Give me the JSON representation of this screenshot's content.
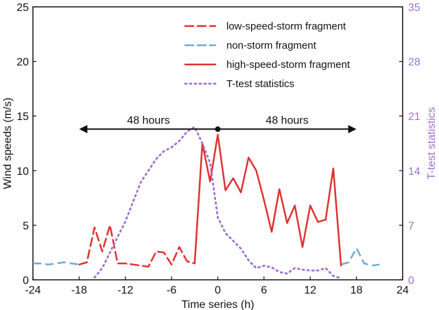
{
  "chart_data": {
    "type": "line",
    "xlabel": "Time series (h)",
    "ylabel": "Wind speeds (m/s)",
    "y2label": "T-test statistics",
    "xlim": [
      -24,
      24
    ],
    "ylim": [
      0,
      25
    ],
    "y2lim": [
      0,
      35
    ],
    "xticks": [
      "-24",
      "-18",
      "-12",
      "-6",
      "0",
      "6",
      "12",
      "18",
      "24"
    ],
    "yticks": [
      "0",
      "5",
      "10",
      "15",
      "20",
      "25"
    ],
    "y2ticks": [
      "0",
      "7",
      "14",
      "21",
      "28",
      "35"
    ],
    "legend_position": "top-right",
    "annotation": {
      "left_label": "48 hours",
      "right_label": "48 hours",
      "arrow_from": -18,
      "arrow_to": 18,
      "center": 0,
      "y": 13.8
    },
    "series": [
      {
        "name": "low-speed-storm fragment",
        "axis": "left",
        "style": "dashed",
        "color": "#e03030",
        "x": [
          -18,
          -17,
          -16,
          -15,
          -14,
          -13,
          -12,
          -11,
          -10,
          -9,
          -8,
          -7,
          -6,
          -5,
          -4,
          -3
        ],
        "y": [
          1.4,
          1.6,
          4.8,
          2.6,
          5.0,
          1.5,
          1.5,
          1.4,
          1.3,
          1.2,
          2.6,
          2.5,
          1.4,
          3.0,
          1.7,
          1.5
        ]
      },
      {
        "name": "non-storm fragment",
        "axis": "left",
        "style": "dashed",
        "color": "#6aaad8",
        "x": [
          -24,
          -23,
          -22,
          -21,
          -20,
          -19,
          -18,
          16,
          17,
          18,
          19,
          20,
          21
        ],
        "y": [
          1.5,
          1.5,
          1.4,
          1.5,
          1.6,
          1.5,
          1.4,
          1.4,
          1.6,
          2.9,
          1.5,
          1.3,
          1.4
        ]
      },
      {
        "name": "high-speed-storm fragment",
        "axis": "left",
        "style": "solid",
        "color": "#e03030",
        "x": [
          -3,
          -2,
          -1,
          0,
          1,
          2,
          3,
          4,
          5,
          6,
          7,
          8,
          9,
          10,
          11,
          12,
          13,
          14,
          15,
          16
        ],
        "y": [
          1.5,
          12.5,
          9.0,
          13.3,
          8.2,
          9.3,
          8.0,
          11.2,
          10.0,
          7.3,
          4.4,
          8.3,
          5.2,
          6.8,
          3.0,
          6.8,
          5.3,
          5.5,
          10.2,
          1.3
        ]
      },
      {
        "name": "T-test statistics",
        "axis": "right",
        "style": "dotted",
        "color": "#a070d0",
        "x": [
          -16,
          -15,
          -14,
          -13,
          -12,
          -11,
          -10,
          -9,
          -8,
          -7,
          -6,
          -5,
          -4,
          -3,
          -2,
          -1,
          0,
          1,
          2,
          3,
          4,
          5,
          6,
          7,
          8,
          9,
          10,
          11,
          12,
          13,
          14,
          15,
          16
        ],
        "y": [
          0.3,
          1.5,
          3.5,
          5.5,
          7.5,
          10.0,
          12.5,
          14.0,
          15.5,
          16.5,
          17.0,
          17.8,
          19.0,
          19.6,
          17.5,
          15.0,
          8.0,
          6.0,
          5.0,
          4.0,
          2.5,
          1.5,
          1.8,
          1.6,
          1.0,
          0.8,
          1.5,
          1.3,
          1.2,
          1.2,
          1.5,
          0.5,
          0.2
        ]
      }
    ]
  }
}
